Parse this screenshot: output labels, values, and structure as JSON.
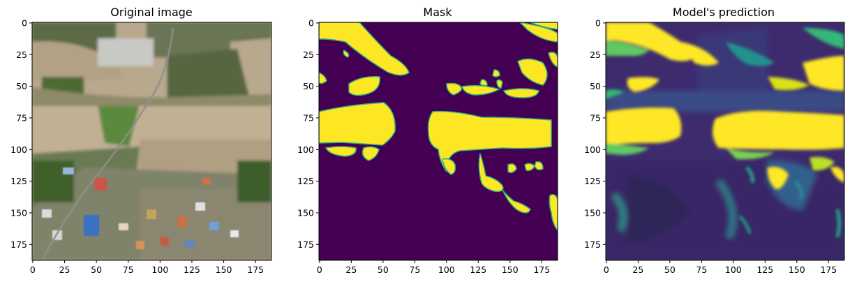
{
  "colors": {
    "viridis_low": "#440154",
    "viridis_mid": "#21918c",
    "viridis_high": "#fde725",
    "axes_edge": "#000000",
    "background": "#ffffff"
  },
  "chart_data": [
    {
      "type": "image",
      "title": "Original image",
      "content": "rgb aerial photograph",
      "xlim": [
        0,
        187
      ],
      "ylim": [
        187,
        0
      ],
      "xticks": [
        0,
        25,
        50,
        75,
        100,
        125,
        150,
        175
      ],
      "yticks": [
        0,
        25,
        50,
        75,
        100,
        125,
        150,
        175
      ]
    },
    {
      "type": "heatmap",
      "title": "Mask",
      "colormap": "viridis",
      "values": [
        0,
        1
      ],
      "xlim": [
        0,
        187
      ],
      "ylim": [
        187,
        0
      ],
      "xticks": [
        0,
        25,
        50,
        75,
        100,
        125,
        150,
        175
      ],
      "yticks": [
        0,
        25,
        50,
        75,
        100,
        125,
        150,
        175
      ]
    },
    {
      "type": "heatmap",
      "title": "Model's prediction",
      "colormap": "viridis",
      "xlim": [
        0,
        187
      ],
      "ylim": [
        187,
        0
      ],
      "xticks": [
        0,
        25,
        50,
        75,
        100,
        125,
        150,
        175
      ],
      "yticks": [
        0,
        25,
        50,
        75,
        100,
        125,
        150,
        175
      ]
    }
  ]
}
